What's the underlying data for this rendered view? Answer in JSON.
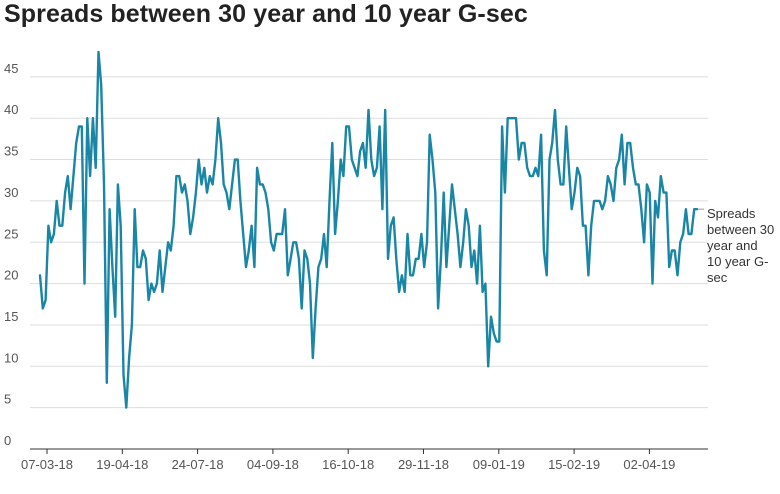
{
  "title": "Spreads between 30 year and 10 year G-sec",
  "chart_data": {
    "type": "line",
    "title": "Spreads between 30 year and 10 year G-sec",
    "xlabel": "",
    "ylabel": "",
    "ylim": [
      0,
      48
    ],
    "y_ticks": [
      0,
      5,
      10,
      15,
      20,
      25,
      30,
      35,
      40,
      45
    ],
    "x_tick_labels": [
      "07-03-18",
      "19-04-18",
      "24-07-18",
      "04-09-18",
      "16-10-18",
      "29-11-18",
      "09-01-19",
      "15-02-19",
      "02-04-19"
    ],
    "grid": true,
    "legend_position": "right-end",
    "color": "#1a86a6",
    "series": [
      {
        "name": "Spreads between 30 year and 10 year G-sec",
        "values": [
          21,
          17,
          18,
          27,
          25,
          26,
          30,
          27,
          27,
          31,
          33,
          29,
          33,
          37,
          39,
          39,
          20,
          40,
          33,
          40,
          34,
          48,
          44,
          32,
          8,
          29,
          22,
          16,
          32,
          27,
          9,
          5,
          11,
          15,
          29,
          22,
          22,
          24,
          23,
          18,
          20,
          19,
          20,
          24,
          19,
          22,
          25,
          24,
          27,
          33,
          33,
          31,
          32,
          30,
          26,
          28,
          31,
          35,
          32,
          34,
          31,
          33,
          32,
          35,
          40,
          37,
          32,
          31,
          29,
          32,
          35,
          35,
          30,
          26,
          22,
          24,
          27,
          22,
          34,
          32,
          32,
          31,
          29,
          25,
          24,
          26,
          26,
          26,
          29,
          21,
          23,
          25,
          25,
          23,
          17,
          24,
          23,
          20,
          11,
          17,
          22,
          23,
          26,
          22,
          30,
          37,
          26,
          30,
          35,
          33,
          39,
          39,
          35,
          34,
          33,
          36,
          37,
          34,
          41,
          35,
          33,
          34,
          39,
          29,
          41,
          23,
          27,
          28,
          23,
          19,
          21,
          19,
          26,
          21,
          21,
          23,
          23,
          26,
          22,
          25,
          38,
          35,
          31,
          17,
          23,
          31,
          22,
          27,
          32,
          29,
          26,
          22,
          25,
          29,
          27,
          22,
          24,
          20,
          27,
          19,
          20,
          10,
          16,
          14,
          13,
          13,
          39,
          31,
          40,
          40,
          40,
          40,
          35,
          37,
          37,
          34,
          33,
          33,
          34,
          33,
          38,
          24,
          21,
          35,
          37,
          41,
          35,
          32,
          32,
          39,
          34,
          29,
          31,
          34,
          33,
          27,
          27,
          21,
          27,
          30,
          30,
          30,
          29,
          30,
          33,
          32,
          30,
          34,
          35,
          38,
          32,
          37,
          37,
          34,
          32,
          32,
          29,
          25,
          32,
          31,
          20,
          30,
          28,
          33,
          31,
          31,
          22,
          24,
          24,
          21,
          25,
          26,
          29,
          26,
          26,
          29,
          29
        ]
      }
    ]
  },
  "legend": {
    "label": "Spreads between 30 year and 10 year G-sec"
  }
}
